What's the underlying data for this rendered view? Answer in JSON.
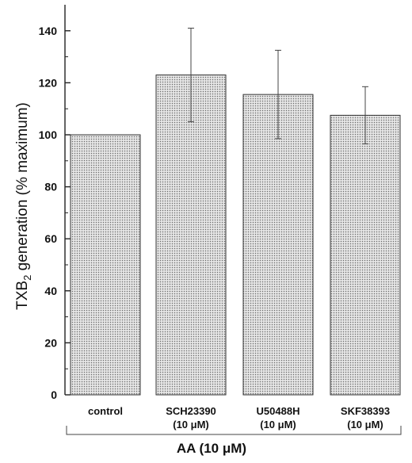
{
  "chart_data": {
    "type": "bar",
    "categories": [
      {
        "line1": "control",
        "line2": ""
      },
      {
        "line1": "SCH23390",
        "line2": "(10 μM)"
      },
      {
        "line1": "U50488H",
        "line2": "(10 μM)"
      },
      {
        "line1": "SKF38393",
        "line2": "(10 μM)"
      }
    ],
    "values": [
      100,
      123,
      115.5,
      107.5
    ],
    "errors": [
      0,
      18,
      17,
      11
    ],
    "ylabel_prefix": "TXB",
    "ylabel_sub": "2",
    "ylabel_suffix": " generation (% maximum)",
    "group_label": "AA  (10 μM)",
    "ylim": [
      0,
      150
    ],
    "yticks": [
      0,
      20,
      40,
      60,
      80,
      100,
      120,
      140
    ],
    "bar_color": "#cfcfcf",
    "grid": false
  }
}
